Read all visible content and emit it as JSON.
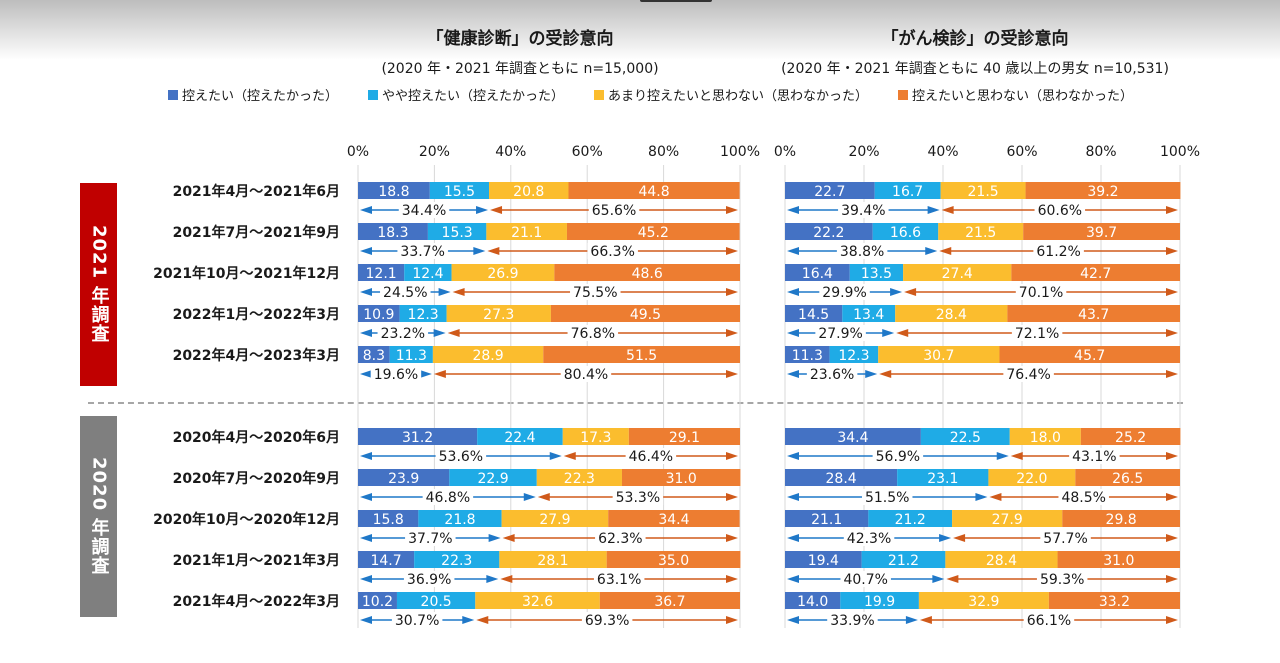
{
  "legend": [
    {
      "label": "控えたい（控えたかった）",
      "color": "#4472c4"
    },
    {
      "label": "やや控えたい（控えたかった）",
      "color": "#1fabe6"
    },
    {
      "label": "あまり控えたいと思わない（思わなかった）",
      "color": "#fbbd2e"
    },
    {
      "label": "控えたいと思わない（思わなかった）",
      "color": "#ed7d31"
    }
  ],
  "sections": [
    {
      "label": "2021 年調査",
      "color": "#c00000"
    },
    {
      "label": "2020 年調査",
      "color": "#7f7f7f"
    }
  ],
  "arrow_colors": {
    "left": "#1f78c8",
    "right": "#d05a1a"
  },
  "chart_data": [
    {
      "type": "bar",
      "orientation": "horizontal-stacked-100",
      "title": "「健康診断」の受診意向",
      "subtitle": "(2020 年・2021 年調査ともに  n=15,000)",
      "xlabel": "",
      "ylabel": "",
      "xlim": [
        0,
        100
      ],
      "x_ticks": [
        "0%",
        "20%",
        "40%",
        "60%",
        "80%",
        "100%"
      ],
      "grid": true,
      "legend_position": "top",
      "categories": [
        "2021年4月～2021年6月",
        "2021年7月～2021年9月",
        "2021年10月～2021年12月",
        "2022年1月～2022年3月",
        "2022年4月～2023年3月",
        "2020年4月～2020年6月",
        "2020年7月～2020年9月",
        "2020年10月～2020年12月",
        "2021年1月～2021年3月",
        "2021年4月～2022年3月"
      ],
      "series": [
        {
          "name": "控えたい（控えたかった）",
          "values": [
            18.8,
            18.3,
            12.1,
            10.9,
            8.3,
            31.2,
            23.9,
            15.8,
            14.7,
            10.2
          ]
        },
        {
          "name": "やや控えたい（控えたかった）",
          "values": [
            15.5,
            15.3,
            12.4,
            12.3,
            11.3,
            22.4,
            22.9,
            21.8,
            22.3,
            20.5
          ]
        },
        {
          "name": "あまり控えたいと思わない（思わなかった）",
          "values": [
            20.8,
            21.1,
            26.9,
            27.3,
            28.9,
            17.3,
            22.3,
            27.9,
            28.1,
            32.6
          ]
        },
        {
          "name": "控えたいと思わない（思わなかった）",
          "values": [
            44.8,
            45.2,
            48.6,
            49.5,
            51.5,
            29.1,
            31.0,
            34.4,
            35.0,
            36.7
          ]
        }
      ],
      "labels": [
        [
          "18.8",
          "15.5",
          "20.8",
          "44.8"
        ],
        [
          "18.3",
          "15.3",
          "21.1",
          "45.2"
        ],
        [
          "12.1",
          "12.4",
          "26.9",
          "48.6"
        ],
        [
          "10.9",
          "12.3",
          "27.3",
          "49.5"
        ],
        [
          "8.3",
          "11.3",
          "28.9",
          "51.5"
        ],
        [
          "31.2",
          "22.4",
          "17.3",
          "29.1"
        ],
        [
          "23.9",
          "22.9",
          "22.3",
          "31.0"
        ],
        [
          "15.8",
          "21.8",
          "27.9",
          "34.4"
        ],
        [
          "14.7",
          "22.3",
          "28.1",
          "35.0"
        ],
        [
          "10.2",
          "20.5",
          "32.6",
          "36.7"
        ]
      ],
      "totals": [
        [
          "34.4%",
          "65.6%"
        ],
        [
          "33.7%",
          "66.3%"
        ],
        [
          "24.5%",
          "75.5%"
        ],
        [
          "23.2%",
          "76.8%"
        ],
        [
          "19.6%",
          "80.4%"
        ],
        [
          "53.6%",
          "46.4%"
        ],
        [
          "46.8%",
          "53.3%"
        ],
        [
          "37.7%",
          "62.3%"
        ],
        [
          "36.9%",
          "63.1%"
        ],
        [
          "30.7%",
          "69.3%"
        ]
      ]
    },
    {
      "type": "bar",
      "orientation": "horizontal-stacked-100",
      "title": "「がん検診」の受診意向",
      "subtitle": "(2020 年・2021 年調査ともに 40 歳以上の男女 n=10,531)",
      "xlabel": "",
      "ylabel": "",
      "xlim": [
        0,
        100
      ],
      "x_ticks": [
        "0%",
        "20%",
        "40%",
        "60%",
        "80%",
        "100%"
      ],
      "grid": true,
      "legend_position": "top",
      "categories": [
        "2021年4月～2021年6月",
        "2021年7月～2021年9月",
        "2021年10月～2021年12月",
        "2022年1月～2022年3月",
        "2022年4月～2023年3月",
        "2020年4月～2020年6月",
        "2020年7月～2020年9月",
        "2020年10月～2020年12月",
        "2021年1月～2021年3月",
        "2021年4月～2022年3月"
      ],
      "series": [
        {
          "name": "控えたい（控えたかった）",
          "values": [
            22.7,
            22.2,
            16.4,
            14.5,
            11.3,
            34.4,
            28.4,
            21.1,
            19.4,
            14.0
          ]
        },
        {
          "name": "やや控えたい（控えたかった）",
          "values": [
            16.7,
            16.6,
            13.5,
            13.4,
            12.3,
            22.5,
            23.1,
            21.2,
            21.2,
            19.9
          ]
        },
        {
          "name": "あまり控えたいと思わない（思わなかった）",
          "values": [
            21.5,
            21.5,
            27.4,
            28.4,
            30.7,
            18.0,
            22.0,
            27.9,
            28.4,
            32.9
          ]
        },
        {
          "name": "控えたいと思わない（思わなかった）",
          "values": [
            39.2,
            39.7,
            42.7,
            43.7,
            45.7,
            25.2,
            26.5,
            29.8,
            31.0,
            33.2
          ]
        }
      ],
      "labels": [
        [
          "22.7",
          "16.7",
          "21.5",
          "39.2"
        ],
        [
          "22.2",
          "16.6",
          "21.5",
          "39.7"
        ],
        [
          "16.4",
          "13.5",
          "27.4",
          "42.7"
        ],
        [
          "14.5",
          "13.4",
          "28.4",
          "43.7"
        ],
        [
          "11.3",
          "12.3",
          "30.7",
          "45.7"
        ],
        [
          "34.4",
          "22.5",
          "18.0",
          "25.2"
        ],
        [
          "28.4",
          "23.1",
          "22.0",
          "26.5"
        ],
        [
          "21.1",
          "21.2",
          "27.9",
          "29.8"
        ],
        [
          "19.4",
          "21.2",
          "28.4",
          "31.0"
        ],
        [
          "14.0",
          "19.9",
          "32.9",
          "33.2"
        ]
      ],
      "totals": [
        [
          "39.4%",
          "60.6%"
        ],
        [
          "38.8%",
          "61.2%"
        ],
        [
          "29.9%",
          "70.1%"
        ],
        [
          "27.9%",
          "72.1%"
        ],
        [
          "23.6%",
          "76.4%"
        ],
        [
          "56.9%",
          "43.1%"
        ],
        [
          "51.5%",
          "48.5%"
        ],
        [
          "42.3%",
          "57.7%"
        ],
        [
          "40.7%",
          "59.3%"
        ],
        [
          "33.9%",
          "66.1%"
        ]
      ]
    }
  ]
}
